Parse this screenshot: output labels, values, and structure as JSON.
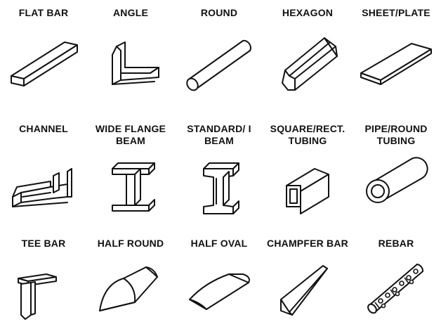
{
  "title": "",
  "shapes": [
    {
      "label": [
        "FLAT BAR"
      ],
      "icon": "flat-bar-icon"
    },
    {
      "label": [
        "ANGLE"
      ],
      "icon": "angle-icon"
    },
    {
      "label": [
        "ROUND"
      ],
      "icon": "round-bar-icon"
    },
    {
      "label": [
        "HEXAGON"
      ],
      "icon": "hexagon-bar-icon"
    },
    {
      "label": [
        "SHEET/PLATE"
      ],
      "icon": "sheet-plate-icon"
    },
    {
      "label": [
        "CHANNEL"
      ],
      "icon": "channel-icon"
    },
    {
      "label": [
        "WIDE FLANGE",
        "BEAM"
      ],
      "icon": "wide-flange-beam-icon"
    },
    {
      "label": [
        "STANDARD/ I",
        "BEAM"
      ],
      "icon": "standard-i-beam-icon"
    },
    {
      "label": [
        "SQUARE/RECT.",
        "TUBING"
      ],
      "icon": "square-tubing-icon"
    },
    {
      "label": [
        "PIPE/ROUND",
        "TUBING"
      ],
      "icon": "pipe-round-tubing-icon"
    },
    {
      "label": [
        "TEE BAR"
      ],
      "icon": "tee-bar-icon"
    },
    {
      "label": [
        "HALF ROUND"
      ],
      "icon": "half-round-icon"
    },
    {
      "label": [
        "HALF OVAL"
      ],
      "icon": "half-oval-icon"
    },
    {
      "label": [
        "CHAMPFER BAR"
      ],
      "icon": "chamfer-bar-icon"
    },
    {
      "label": [
        "REBAR"
      ],
      "icon": "rebar-icon"
    }
  ]
}
